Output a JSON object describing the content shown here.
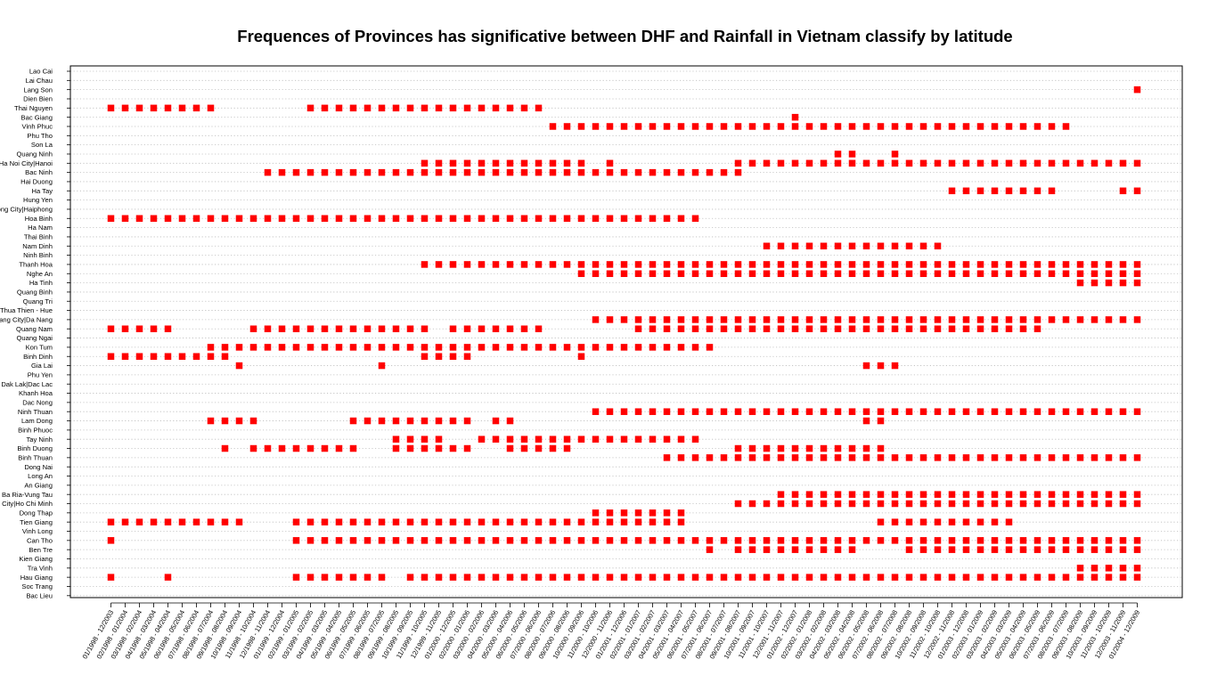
{
  "chart_data": {
    "type": "scatter",
    "title": "Frequences of Provinces has significative between DHF and Rainfall in Vietnam classify by latitude",
    "xlabel": "",
    "ylabel": "",
    "marker_color": "#ff0000",
    "grid": "dotted horizontal lines",
    "provinces": [
      "Lao Cai",
      "Lai Chau",
      "Lang Son",
      "Dien Bien",
      "Thai Nguyen",
      "Bac Giang",
      "Vinh Phuc",
      "Phu Tho",
      "Son La",
      "Quang Ninh",
      "Ha Noi City|Hanoi",
      "Bac Ninh",
      "Hai Duong",
      "Ha Tay",
      "Hung Yen",
      "Hai Phong City|Haiphong",
      "Hoa Binh",
      "Ha Nam",
      "Thai Binh",
      "Nam Dinh",
      "Ninh Binh",
      "Thanh Hoa",
      "Nghe An",
      "Ha Tinh",
      "Quang Binh",
      "Quang Tri",
      "Thua Thien - Hue",
      "Da Nang City|Da Nang",
      "Quang Nam",
      "Quang Ngai",
      "Kon Tum",
      "Binh Dinh",
      "Gia Lai",
      "Phu Yen",
      "Dak Lak|Dac Lac",
      "Khanh Hoa",
      "Dac Nong",
      "Ninh Thuan",
      "Lam Dong",
      "Binh Phuoc",
      "Tay Ninh",
      "Binh Duong",
      "Binh Thuan",
      "Dong Nai",
      "Long An",
      "An Giang",
      "Ba Ria-Vung Tau",
      "Ho Chi Minh City|Ho Chi Minh",
      "Dong Thap",
      "Tien Giang",
      "Vinh Long",
      "Can Tho",
      "Ben Tre",
      "Kien Giang",
      "Tra Vinh",
      "Hau Giang",
      "Soc Trang",
      "Bac Lieu"
    ],
    "periods": [
      "01/1998 - 12/2003",
      "02/1998 - 01/2004",
      "03/1998 - 02/2004",
      "04/1998 - 03/2004",
      "05/1998 - 04/2004",
      "06/1998 - 05/2004",
      "07/1998 - 06/2004",
      "08/1998 - 07/2004",
      "09/1998 - 08/2004",
      "10/1998 - 09/2004",
      "11/1998 - 10/2004",
      "12/1998 - 11/2004",
      "01/1999 - 12/2004",
      "02/1999 - 01/2005",
      "03/1999 - 02/2005",
      "04/1999 - 03/2005",
      "05/1999 - 04/2005",
      "06/1999 - 05/2005",
      "07/1999 - 06/2005",
      "08/1999 - 07/2005",
      "09/1999 - 08/2005",
      "10/1999 - 09/2005",
      "11/1999 - 10/2005",
      "12/1999 - 11/2005",
      "01/2000 - 12/2005",
      "02/2000 - 01/2006",
      "03/2000 - 02/2006",
      "04/2000 - 03/2006",
      "05/2000 - 04/2006",
      "06/2000 - 05/2006",
      "07/2000 - 06/2006",
      "08/2000 - 07/2006",
      "09/2000 - 08/2006",
      "10/2000 - 09/2006",
      "11/2000 - 10/2006",
      "12/2000 - 11/2006",
      "01/2001 - 12/2006",
      "02/2001 - 01/2007",
      "03/2001 - 02/2007",
      "04/2001 - 03/2007",
      "05/2001 - 04/2007",
      "06/2001 - 05/2007",
      "07/2001 - 06/2007",
      "08/2001 - 07/2007",
      "09/2001 - 08/2007",
      "10/2001 - 09/2007",
      "11/2001 - 10/2007",
      "12/2001 - 11/2007",
      "01/2002 - 12/2007",
      "02/2002 - 01/2008",
      "03/2002 - 02/2008",
      "04/2002 - 03/2008",
      "05/2002 - 04/2008",
      "06/2002 - 05/2008",
      "07/2002 - 06/2008",
      "08/2002 - 07/2008",
      "09/2002 - 08/2008",
      "10/2002 - 09/2008",
      "11/2002 - 10/2008",
      "12/2002 - 11/2008",
      "01/2003 - 12/2008",
      "02/2003 - 01/2009",
      "03/2003 - 02/2009",
      "04/2003 - 03/2009",
      "05/2003 - 04/2009",
      "06/2003 - 05/2009",
      "07/2003 - 06/2009",
      "08/2003 - 07/2009",
      "09/2003 - 08/2009",
      "10/2003 - 09/2009",
      "11/2003 - 10/2009",
      "12/2003 - 11/2009",
      "01/2004 - 12/2009"
    ],
    "x_tick_labels": [
      "01/1998 - 12/2003",
      "02/1998 - 01/2004",
      "03/1998 - 02/2004",
      "04/1998 - 03/2004",
      "05/1998 - 04/2004",
      "06/1998 - 05/2004",
      "07/1998 - 06/2004",
      "08/1998 - 07/2004",
      "09/1998 - 08/2004",
      "10/1998 - 09/2004",
      "11/1998 - 10/2004",
      "12/1998 - 11/2004",
      "01/1999 - 12/2004",
      "02/1999 - 01/2005",
      "03/1999 - 02/2005",
      "04/1999 - 03/2005",
      "05/1999 - 04/2005",
      "06/1999 - 05/2005",
      "07/1999 - 06/2005",
      "08/1999 - 07/2005",
      "09/1999 - 08/2005",
      "10/1999 - 09/2005",
      "11/1999 - 10/2005",
      "12/1999 - 11/2005",
      "01/2000 - 12/2005",
      "02/2000 - 01/2006",
      "03/2000 - 02/2006",
      "04/2000 - 03/2006",
      "05/2000 - 04/2006",
      "06/2000 - 05/2006",
      "07/2000 - 06/2006",
      "08/2000 - 07/2006",
      "09/2000 - 08/2006",
      "10/2000 - 09/2006",
      "11/2000 - 10/2006",
      "12/2000 - 11/2006",
      "01/2001 - 12/2006",
      "02/2001 - 01/2007",
      "03/2001 - 02/2007",
      "04/2001 - 03/2007",
      "05/2001 - 04/2007",
      "06/2001 - 05/2007",
      "07/2001 - 06/2007",
      "08/2001 - 07/2007",
      "09/2001 - 08/2007",
      "10/2001 - 09/2007",
      "11/2001 - 10/2007",
      "12/2001 - 11/2007",
      "01/2002 - 12/2007",
      "02/2002 - 01/2008",
      "03/2002 - 02/2008",
      "04/2002 - 03/2008",
      "05/2002 - 04/2008",
      "06/2002 - 05/2008",
      "07/2002 - 06/2008",
      "08/2002 - 07/2008",
      "09/2002 - 08/2008",
      "10/2002 - 09/2008",
      "11/2002 - 10/2008",
      "12/2002 - 11/2008",
      "01/2003 - 12/2008",
      "02/2003 - 01/2009",
      "03/2003 - 02/2009",
      "04/2003 - 03/2009",
      "05/2003 - 04/2009",
      "06/2003 - 05/2009",
      "07/2003 - 06/2009",
      "08/2003 - 07/2009",
      "09/2003 - 08/2009",
      "10/2003 - 09/2009",
      "11/2003 - 10/2009",
      "12/2003 - 11/2009",
      "01/2004 - 12/2009"
    ],
    "significant_periods": {
      "Lang Son": [
        72
      ],
      "Thai Nguyen": [
        [
          0,
          7
        ],
        [
          14,
          30
        ]
      ],
      "Bac Giang": [
        48
      ],
      "Vinh Phuc": [
        [
          31,
          67
        ]
      ],
      "Quang Ninh": [
        51,
        52,
        55
      ],
      "Ha Noi City|Hanoi": [
        [
          22,
          33
        ],
        35,
        [
          44,
          72
        ]
      ],
      "Bac Ninh": [
        [
          11,
          44
        ]
      ],
      "Ha Tay": [
        [
          59,
          66
        ],
        71,
        72
      ],
      "Hoa Binh": [
        [
          0,
          41
        ]
      ],
      "Nam Dinh": [
        [
          46,
          58
        ]
      ],
      "Thanh Hoa": [
        [
          22,
          72
        ]
      ],
      "Nghe An": [
        [
          33,
          72
        ]
      ],
      "Ha Tinh": [
        [
          68,
          72
        ]
      ],
      "Da Nang City|Da Nang": [
        [
          34,
          72
        ]
      ],
      "Quang Nam": [
        [
          0,
          4
        ],
        [
          10,
          22
        ],
        [
          24,
          30
        ],
        [
          37,
          65
        ]
      ],
      "Kon Tum": [
        [
          7,
          42
        ]
      ],
      "Binh Dinh": [
        [
          0,
          8
        ],
        [
          22,
          25
        ],
        33
      ],
      "Gia Lai": [
        9,
        19,
        53,
        54,
        55
      ],
      "Ninh Thuan": [
        [
          34,
          72
        ]
      ],
      "Lam Dong": [
        [
          7,
          10
        ],
        [
          17,
          25
        ],
        27,
        28,
        53,
        54
      ],
      "Tay Ninh": [
        [
          20,
          23
        ],
        [
          26,
          41
        ]
      ],
      "Binh Duong": [
        8,
        [
          10,
          17
        ],
        [
          20,
          25
        ],
        [
          28,
          32
        ],
        [
          44,
          54
        ]
      ],
      "Binh Thuan": [
        [
          39,
          72
        ]
      ],
      "Ba Ria-Vung Tau": [
        [
          47,
          72
        ]
      ],
      "Ho Chi Minh City|Ho Chi Minh": [
        [
          44,
          72
        ]
      ],
      "Dong Thap": [
        [
          34,
          40
        ]
      ],
      "Tien Giang": [
        [
          0,
          9
        ],
        [
          13,
          40
        ],
        [
          54,
          63
        ]
      ],
      "Can Tho": [
        0,
        [
          13,
          72
        ]
      ],
      "Ben Tre": [
        42,
        [
          44,
          52
        ],
        [
          56,
          72
        ]
      ],
      "Tra Vinh": [
        [
          68,
          72
        ]
      ],
      "Hau Giang": [
        0,
        4,
        [
          13,
          19
        ],
        [
          21,
          72
        ]
      ]
    }
  }
}
